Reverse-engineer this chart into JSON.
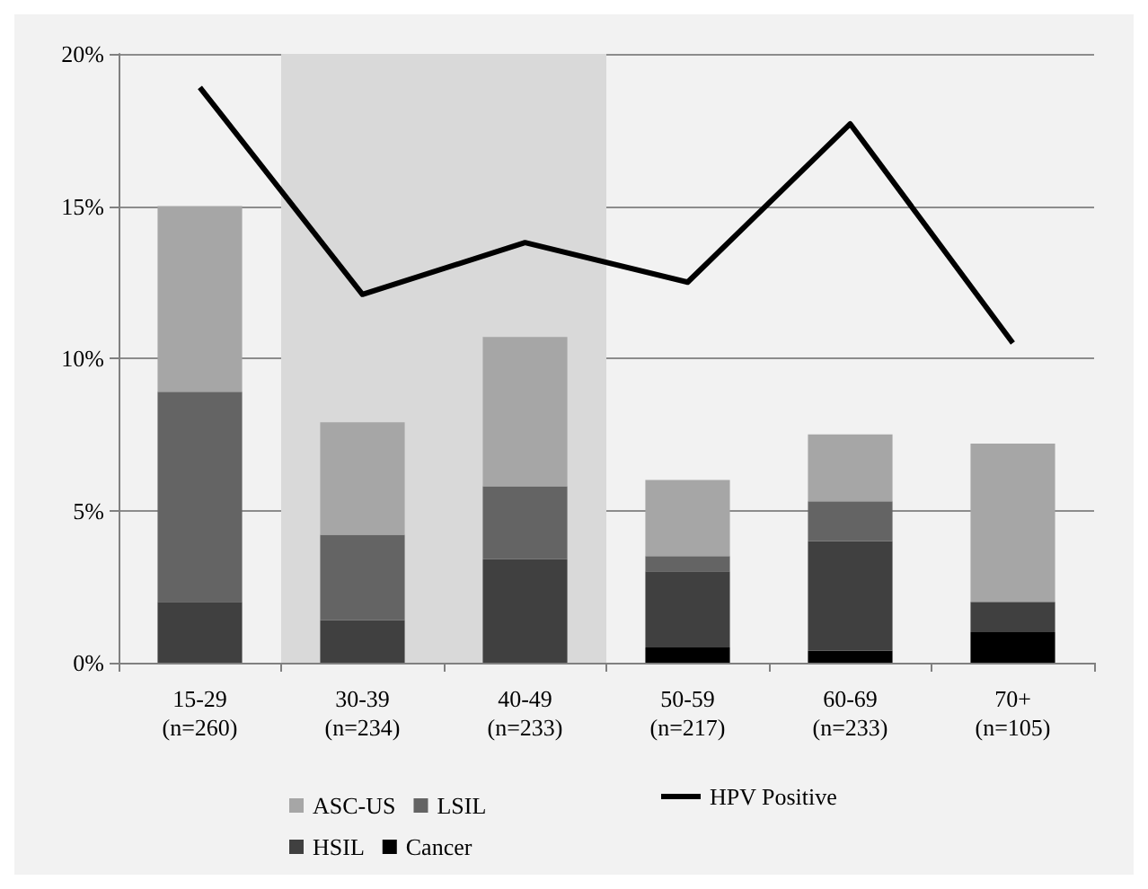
{
  "chart_data": {
    "type": "bar",
    "stacked": true,
    "categories": [
      "15-29 (n=260)",
      "30-39 (n=234)",
      "40-49 (n=233)",
      "50-59 (n=217)",
      "60-69 (n=233)",
      "70+ (n=105)"
    ],
    "series": [
      {
        "name": "Cancer",
        "color": "#000000",
        "values": [
          0,
          0,
          0,
          0.5,
          0.4,
          1.0
        ]
      },
      {
        "name": "HSIL",
        "color": "#404040",
        "values": [
          2.0,
          1.4,
          3.4,
          2.5,
          3.6,
          1.0
        ]
      },
      {
        "name": "LSIL",
        "color": "#646464",
        "values": [
          6.9,
          2.8,
          2.4,
          0.5,
          1.3,
          0
        ]
      },
      {
        "name": "ASC-US",
        "color": "#a6a6a6",
        "values": [
          6.1,
          3.7,
          4.9,
          2.5,
          2.2,
          5.2
        ]
      },
      {
        "name": "HPV Positive",
        "type": "line",
        "color": "#000000",
        "values": [
          18.9,
          12.1,
          13.8,
          12.5,
          17.7,
          10.5
        ]
      }
    ],
    "ylim": [
      0,
      20
    ],
    "yticks": [
      {
        "value": 0,
        "label": "0%"
      },
      {
        "value": 5,
        "label": "5%"
      },
      {
        "value": 10,
        "label": "10%"
      },
      {
        "value": 15,
        "label": "15%"
      },
      {
        "value": 20,
        "label": "20%"
      }
    ],
    "grid": "y",
    "legend": "bottom",
    "marker": "none",
    "bands": [
      {
        "axis": "x",
        "from": "30-39 (n=234)",
        "to": "40-49 (n=233)",
        "color": "#d9d9d9"
      }
    ]
  }
}
